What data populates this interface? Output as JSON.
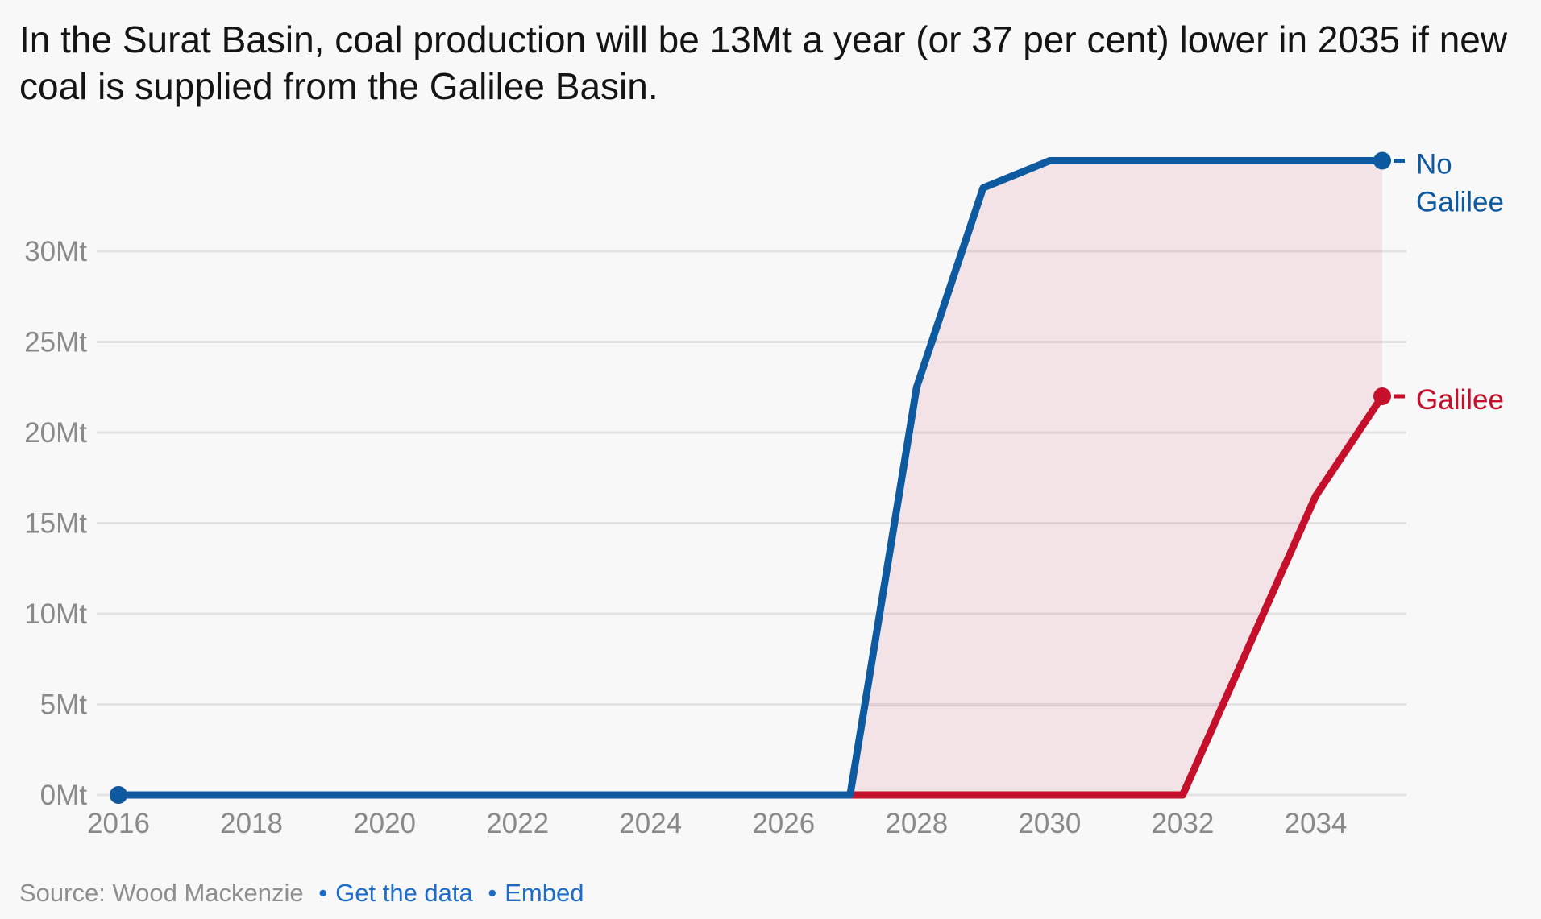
{
  "title": "In the Surat Basin, coal production will be 13Mt a year (or 37 per cent) lower in 2035 if new coal is supplied from the Galilee Basin.",
  "footer": {
    "source_text": "Source: Wood Mackenzie",
    "separator": "•",
    "links": [
      {
        "label": "Get the data"
      },
      {
        "label": "Embed"
      }
    ]
  },
  "colors": {
    "background": "#f8f8f8",
    "title_text": "#141414",
    "axis_text": "#8a8a8a",
    "gridline": "#e3e3e3",
    "no_galilee_blue": "#0e5aa0",
    "galilee_red": "#c50f2b",
    "difference_fill": "rgba(197,15,43,0.085)",
    "link_blue": "#1d6ccb"
  },
  "chart_data": {
    "type": "line",
    "title": "In the Surat Basin, coal production will be 13Mt a year (or 37 per cent) lower in 2035 if new coal is supplied from the Galilee Basin.",
    "x": [
      2016,
      2017,
      2018,
      2019,
      2020,
      2021,
      2022,
      2023,
      2024,
      2025,
      2026,
      2027,
      2028,
      2029,
      2030,
      2031,
      2032,
      2033,
      2034,
      2035
    ],
    "series": [
      {
        "name": "No Galilee",
        "label_lines": [
          "No",
          "Galilee"
        ],
        "color": "#0e5aa0",
        "values": [
          0,
          0,
          0,
          0,
          0,
          0,
          0,
          0,
          0,
          0,
          0,
          0,
          22.5,
          33.5,
          35,
          35,
          35,
          35,
          35,
          35
        ]
      },
      {
        "name": "Galilee",
        "label_lines": [
          "Galilee"
        ],
        "color": "#c50f2b",
        "values": [
          0,
          0,
          0,
          0,
          0,
          0,
          0,
          0,
          0,
          0,
          0,
          0,
          0,
          0,
          0,
          0,
          0,
          8.25,
          16.5,
          22
        ]
      }
    ],
    "unit": "Mt",
    "yticks": [
      {
        "value": 0,
        "label": "0Mt"
      },
      {
        "value": 5,
        "label": "5Mt"
      },
      {
        "value": 10,
        "label": "10Mt"
      },
      {
        "value": 15,
        "label": "15Mt"
      },
      {
        "value": 20,
        "label": "20Mt"
      },
      {
        "value": 25,
        "label": "25Mt"
      },
      {
        "value": 30,
        "label": "30Mt"
      }
    ],
    "xticks": [
      {
        "value": 2016,
        "label": "2016"
      },
      {
        "value": 2018,
        "label": "2018"
      },
      {
        "value": 2020,
        "label": "2020"
      },
      {
        "value": 2022,
        "label": "2022"
      },
      {
        "value": 2024,
        "label": "2024"
      },
      {
        "value": 2026,
        "label": "2026"
      },
      {
        "value": 2028,
        "label": "2028"
      },
      {
        "value": 2030,
        "label": "2030"
      },
      {
        "value": 2032,
        "label": "2032"
      },
      {
        "value": 2034,
        "label": "2034"
      }
    ],
    "ylim": [
      0,
      36.3
    ],
    "xlim": [
      2016,
      2035
    ],
    "grid": "horizontal",
    "legend_position": "right-of-line-ends",
    "fill_between": {
      "upper": "No Galilee",
      "lower": "Galilee",
      "color": "rgba(197,15,43,0.085)"
    }
  }
}
